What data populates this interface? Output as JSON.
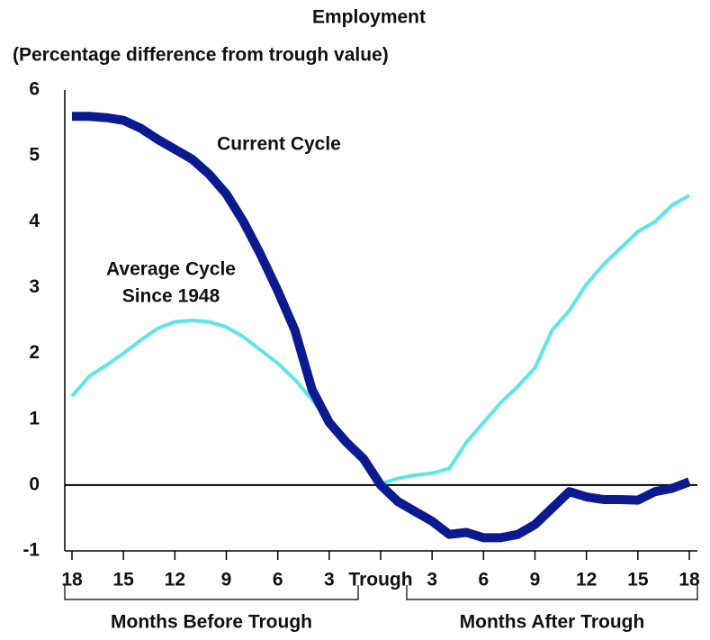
{
  "chart_data": {
    "type": "line",
    "title": "Employment",
    "subtitle": "(Percentage difference from trough value)",
    "x": [
      -18,
      -17,
      -16,
      -15,
      -14,
      -13,
      -12,
      -11,
      -10,
      -9,
      -8,
      -7,
      -6,
      -5,
      -4,
      -3,
      -2,
      -1,
      0,
      1,
      2,
      3,
      4,
      5,
      6,
      7,
      8,
      9,
      10,
      11,
      12,
      13,
      14,
      15,
      16,
      17,
      18
    ],
    "series": [
      {
        "label_lines": [
          "Average Cycle",
          "Since 1948"
        ],
        "color": "#5ee6e6",
        "width": 4,
        "values": [
          1.35,
          1.65,
          1.82,
          2.0,
          2.2,
          2.38,
          2.48,
          2.5,
          2.48,
          2.4,
          2.25,
          2.05,
          1.85,
          1.6,
          1.3,
          0.95,
          0.7,
          0.4,
          0.02,
          0.1,
          0.15,
          0.18,
          0.25,
          0.65,
          0.95,
          1.25,
          1.5,
          1.78,
          2.35,
          2.65,
          3.05,
          3.35,
          3.6,
          3.85,
          4.0,
          4.25,
          4.4
        ]
      },
      {
        "label_lines": [
          "Current Cycle"
        ],
        "color": "#0b1a8f",
        "width": 10,
        "values": [
          5.6,
          5.6,
          5.58,
          5.54,
          5.42,
          5.25,
          5.1,
          4.95,
          4.72,
          4.42,
          4.0,
          3.5,
          2.95,
          2.35,
          1.45,
          0.95,
          0.65,
          0.4,
          0.0,
          -0.25,
          -0.4,
          -0.55,
          -0.75,
          -0.72,
          -0.8,
          -0.8,
          -0.75,
          -0.6,
          -0.35,
          -0.1,
          -0.18,
          -0.22,
          -0.22,
          -0.23,
          -0.1,
          -0.05,
          0.05
        ]
      }
    ],
    "xlim": [
      -18,
      18
    ],
    "xticks": [
      {
        "value": -18,
        "label": "18"
      },
      {
        "value": -15,
        "label": "15"
      },
      {
        "value": -12,
        "label": "12"
      },
      {
        "value": -9,
        "label": "9"
      },
      {
        "value": -6,
        "label": "6"
      },
      {
        "value": -3,
        "label": "3"
      },
      {
        "value": 0,
        "label": "Trough"
      },
      3,
      6,
      9,
      12,
      15,
      18
    ],
    "ylim": [
      -1,
      6
    ],
    "yticks": [
      -1,
      0,
      1,
      2,
      3,
      4,
      5,
      6
    ],
    "x_groups": [
      "Months Before Trough",
      "Months After Trough"
    ]
  }
}
